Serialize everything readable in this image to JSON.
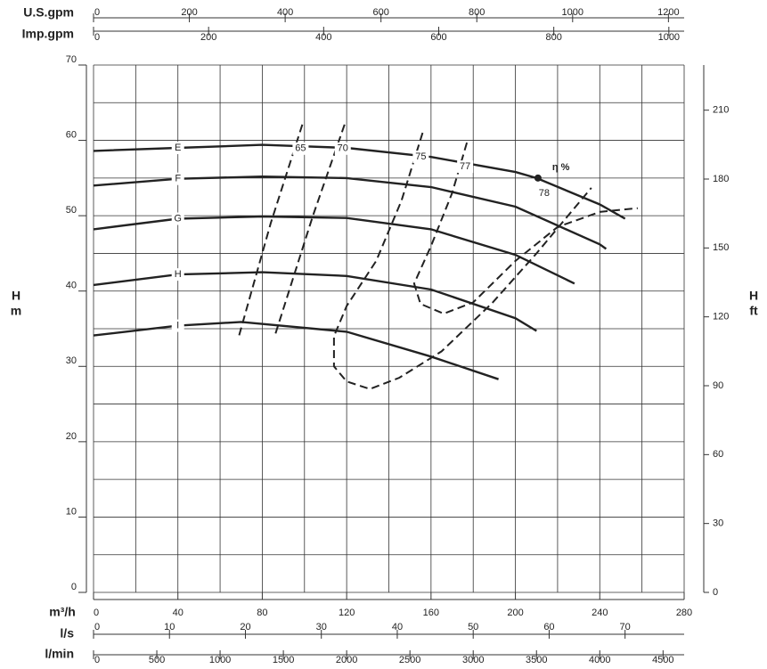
{
  "chart_data": {
    "type": "line",
    "xlabel": "m³/h",
    "xlim": [
      0,
      280
    ],
    "xticks": [
      0,
      40,
      80,
      120,
      160,
      200,
      240,
      280
    ],
    "minor_xticks": [
      20,
      60,
      100,
      140,
      180,
      220,
      260
    ],
    "ylabel": "H",
    "yunit": "m",
    "ylim": [
      0,
      70
    ],
    "yticks": [
      0,
      10,
      20,
      30,
      40,
      50,
      60,
      70
    ],
    "minor_yticks": [
      5,
      15,
      25,
      35,
      45,
      55,
      65
    ],
    "y2label": "H",
    "y2unit": "ft",
    "y2lim": [
      0,
      229.66
    ],
    "y2ticks": [
      0,
      30,
      60,
      90,
      120,
      150,
      180,
      210
    ],
    "grid": true,
    "extra_x_axes": [
      {
        "label": "l/s",
        "xlim": [
          0,
          77.78
        ],
        "xticks": [
          0,
          10,
          20,
          30,
          40,
          50,
          60,
          70
        ]
      },
      {
        "label": "l/min",
        "xlim": [
          0,
          4666.7
        ],
        "xticks": [
          0,
          500,
          1000,
          1500,
          2000,
          2500,
          3000,
          3500,
          4000,
          4500
        ]
      },
      {
        "label": "U.S.gpm",
        "xlim": [
          0,
          1232.8
        ],
        "xticks": [
          0,
          200,
          400,
          600,
          800,
          1000,
          1200
        ]
      },
      {
        "label": "Imp.gpm",
        "xlim": [
          0,
          1026.6
        ],
        "xticks": [
          0,
          200,
          400,
          600,
          800,
          1000
        ]
      }
    ],
    "series": [
      {
        "name": "E",
        "color": "#222222",
        "x": [
          0,
          40,
          80,
          120,
          160,
          200,
          210,
          240,
          252
        ],
        "values": [
          58.6,
          59.0,
          59.4,
          59.0,
          57.8,
          55.8,
          55.0,
          51.5,
          49.6
        ]
      },
      {
        "name": "F",
        "color": "#222222",
        "x": [
          0,
          40,
          80,
          120,
          160,
          200,
          240,
          243
        ],
        "values": [
          54.0,
          54.9,
          55.2,
          55.0,
          53.8,
          51.2,
          46.2,
          45.6
        ]
      },
      {
        "name": "G",
        "color": "#222222",
        "x": [
          0,
          40,
          80,
          120,
          160,
          200,
          228
        ],
        "values": [
          48.2,
          49.6,
          49.9,
          49.7,
          48.2,
          44.8,
          41.0
        ]
      },
      {
        "name": "H",
        "color": "#222222",
        "x": [
          0,
          40,
          80,
          120,
          160,
          200,
          210
        ],
        "values": [
          40.8,
          42.2,
          42.5,
          42.0,
          40.2,
          36.4,
          34.7
        ]
      },
      {
        "name": "I",
        "color": "#222222",
        "x": [
          0,
          40,
          70,
          120,
          160,
          192
        ],
        "values": [
          34.1,
          35.4,
          35.9,
          34.6,
          31.3,
          28.3
        ]
      }
    ],
    "efficiency_label": "η %",
    "efficiency_curves": [
      {
        "name": "65",
        "x": [
          99,
          84,
          69
        ],
        "values": [
          62.1,
          49,
          34.1
        ]
      },
      {
        "name": "70",
        "x": [
          119,
          104,
          86
        ],
        "values": [
          62.1,
          50,
          34.1
        ]
      },
      {
        "name": "75",
        "x": [
          156,
          146,
          134,
          120,
          114,
          114,
          120,
          131,
          145,
          165,
          189,
          210,
          236
        ],
        "values": [
          61,
          52,
          44,
          38,
          34,
          30,
          28,
          27,
          28.5,
          32,
          38.4,
          45,
          53.7
        ]
      },
      {
        "name": "77",
        "x": [
          177,
          170,
          160,
          152,
          155,
          166,
          180,
          200,
          220,
          240,
          258
        ],
        "values": [
          59.7,
          53,
          46,
          41,
          38.3,
          37,
          38.5,
          44,
          48.5,
          50.5,
          51
        ]
      },
      {
        "name": "78",
        "x": [
          210.7
        ],
        "values": [
          55.0
        ]
      }
    ]
  }
}
